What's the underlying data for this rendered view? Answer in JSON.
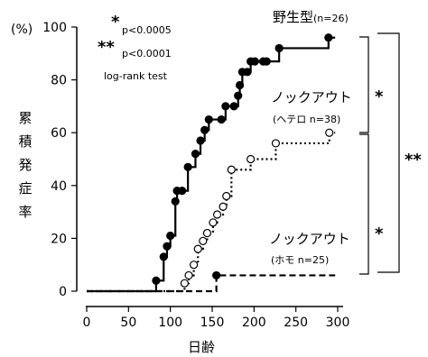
{
  "chart_data": {
    "type": "line",
    "title": "",
    "ylabel_unit": "(%)",
    "ylabel": "累積発症率",
    "xlabel": "日齢",
    "xlim": [
      0,
      300
    ],
    "ylim": [
      0,
      100
    ],
    "xticks": [
      0,
      50,
      100,
      150,
      200,
      250,
      300
    ],
    "yticks": [
      0,
      20,
      40,
      60,
      80,
      100
    ],
    "grid": false,
    "series": [
      {
        "label_main": "野生型",
        "label_count": "(n=26)",
        "style": "solid",
        "marker": "filled-circle",
        "color": "#000000",
        "events": [
          [
            83,
            4
          ],
          [
            92,
            13
          ],
          [
            96,
            17
          ],
          [
            100,
            21
          ],
          [
            106,
            34
          ],
          [
            108,
            38
          ],
          [
            114,
            38
          ],
          [
            121,
            47
          ],
          [
            130,
            52
          ],
          [
            136,
            57
          ],
          [
            141,
            61
          ],
          [
            146,
            65
          ],
          [
            161,
            65
          ],
          [
            166,
            70
          ],
          [
            176,
            70
          ],
          [
            181,
            74
          ],
          [
            183,
            78
          ],
          [
            186,
            83
          ],
          [
            192,
            83
          ],
          [
            196,
            87
          ],
          [
            201,
            87
          ],
          [
            211,
            87
          ],
          [
            215,
            87
          ],
          [
            230,
            92
          ],
          [
            289,
            96
          ]
        ],
        "end": 297
      },
      {
        "label_main": "ノックアウト",
        "label_count": "(ヘテロ n=38)",
        "style": "dotted",
        "marker": "open-circle",
        "color": "#000000",
        "events": [
          [
            117,
            3
          ],
          [
            122,
            6
          ],
          [
            128,
            10
          ],
          [
            133,
            16
          ],
          [
            139,
            19
          ],
          [
            144,
            22
          ],
          [
            151,
            26
          ],
          [
            156,
            29
          ],
          [
            163,
            32
          ],
          [
            167,
            36
          ],
          [
            173,
            46
          ],
          [
            196,
            50
          ],
          [
            226,
            56
          ],
          [
            290,
            60
          ]
        ],
        "end": 297
      },
      {
        "label_main": "ノックアウト",
        "label_count": "(ホモ n=25)",
        "style": "dashed",
        "marker": "filled-circle",
        "color": "#000000",
        "events": [
          [
            155,
            6
          ]
        ],
        "end": 297
      }
    ],
    "annotations": {
      "sig1_mark": "*",
      "sig1_text": "p<0.0005",
      "sig2_mark": "**",
      "sig2_text": "p<0.0001",
      "test": "log-rank test"
    },
    "brackets": [
      {
        "span": "wild-type vs heterozygous",
        "mark": "*"
      },
      {
        "span": "heterozygous vs homozygous",
        "mark": "*"
      },
      {
        "span": "wild-type vs homozygous",
        "mark": "**"
      }
    ]
  }
}
